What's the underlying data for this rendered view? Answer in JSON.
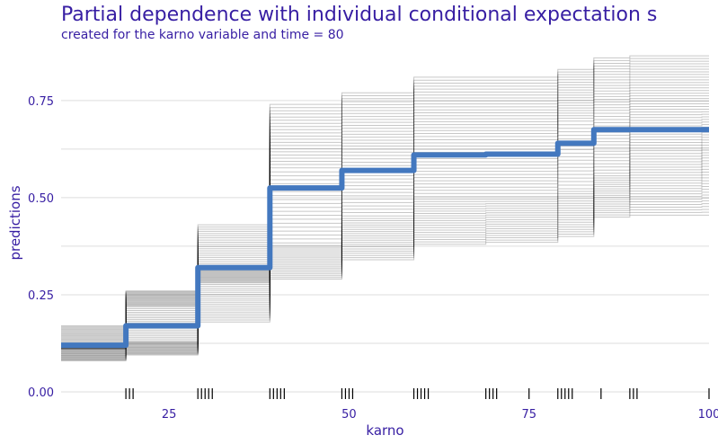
{
  "chart_data": {
    "type": "line",
    "title": "Partial dependence with individual conditional expectation s",
    "subtitle": "created for the karno variable and time = 80",
    "xlabel": "karno",
    "ylabel": "predictions",
    "xlim": [
      10,
      100
    ],
    "ylim": [
      0,
      0.87
    ],
    "x_ticks": [
      25,
      50,
      75,
      100
    ],
    "y_ticks": [
      0.0,
      0.25,
      0.5,
      0.75
    ],
    "y_tick_labels": [
      "0.00",
      "0.25",
      "0.50",
      "0.75"
    ],
    "grid": true,
    "pdp_color": "#4378bf",
    "ice_color": "#000000",
    "text_color": "#371ea3",
    "x_grid": [
      10,
      20,
      30,
      40,
      50,
      60,
      70,
      80,
      85,
      90,
      100
    ],
    "pdp": {
      "name": "",
      "values": [
        0.12,
        0.17,
        0.32,
        0.525,
        0.57,
        0.61,
        0.612,
        0.64,
        0.675,
        0.675,
        0.675
      ]
    },
    "ice_summary": {
      "lower_band": [
        0.08,
        0.095,
        0.18,
        0.29,
        0.34,
        0.38,
        0.385,
        0.4,
        0.45,
        0.455,
        0.455
      ],
      "mid_low_band": [
        0.11,
        0.13,
        0.28,
        0.38,
        0.45,
        0.5,
        0.5,
        0.52,
        0.56,
        0.59,
        0.6
      ],
      "mid_high_band": [
        0.12,
        0.22,
        0.32,
        0.58,
        0.62,
        0.66,
        0.66,
        0.7,
        0.72,
        0.73,
        0.73
      ],
      "upper_band": [
        0.17,
        0.26,
        0.43,
        0.74,
        0.77,
        0.81,
        0.81,
        0.83,
        0.86,
        0.865,
        0.865
      ]
    },
    "rug": [
      19,
      19.5,
      20,
      29,
      29.5,
      30,
      30.5,
      31,
      39,
      39.5,
      40,
      40.5,
      41,
      49,
      49.5,
      50,
      50.5,
      59,
      59.5,
      60,
      60.5,
      61,
      69,
      69.5,
      70,
      70.5,
      75,
      79,
      79.5,
      80,
      80.5,
      81,
      85,
      89,
      89.5,
      90,
      100
    ]
  }
}
